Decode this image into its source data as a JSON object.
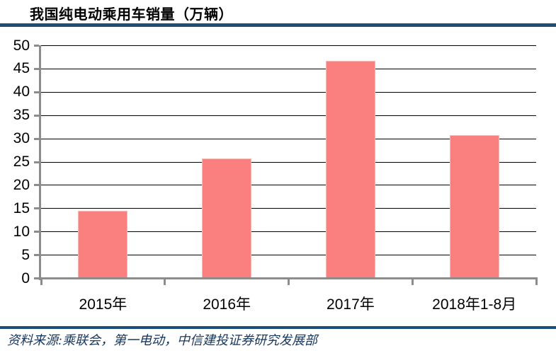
{
  "page": {
    "source": "资料来源:乘联会，第一电动，中信建投证券研究发展部"
  },
  "colors": {
    "bar_fill": "#fa8080",
    "bar_edge": "#fcbab7",
    "divider": "#1f4e79",
    "gridline": "#000000",
    "axis": "#8c8c8c",
    "tick_label": "#000000",
    "source_text": "#17365d",
    "background": "#ffffff"
  },
  "chart_data": {
    "type": "bar",
    "title": "我国纯电动乘用车销量（万辆）",
    "categories": [
      "2015年",
      "2016年",
      "2017年",
      "2018年1-8月"
    ],
    "values": [
      14.5,
      25.7,
      46.7,
      30.8
    ],
    "unit": "万辆",
    "xlabel": "",
    "ylabel": "",
    "ylim": [
      0,
      50
    ],
    "ytick_step": 5,
    "grid": true,
    "legend_position": "none"
  }
}
